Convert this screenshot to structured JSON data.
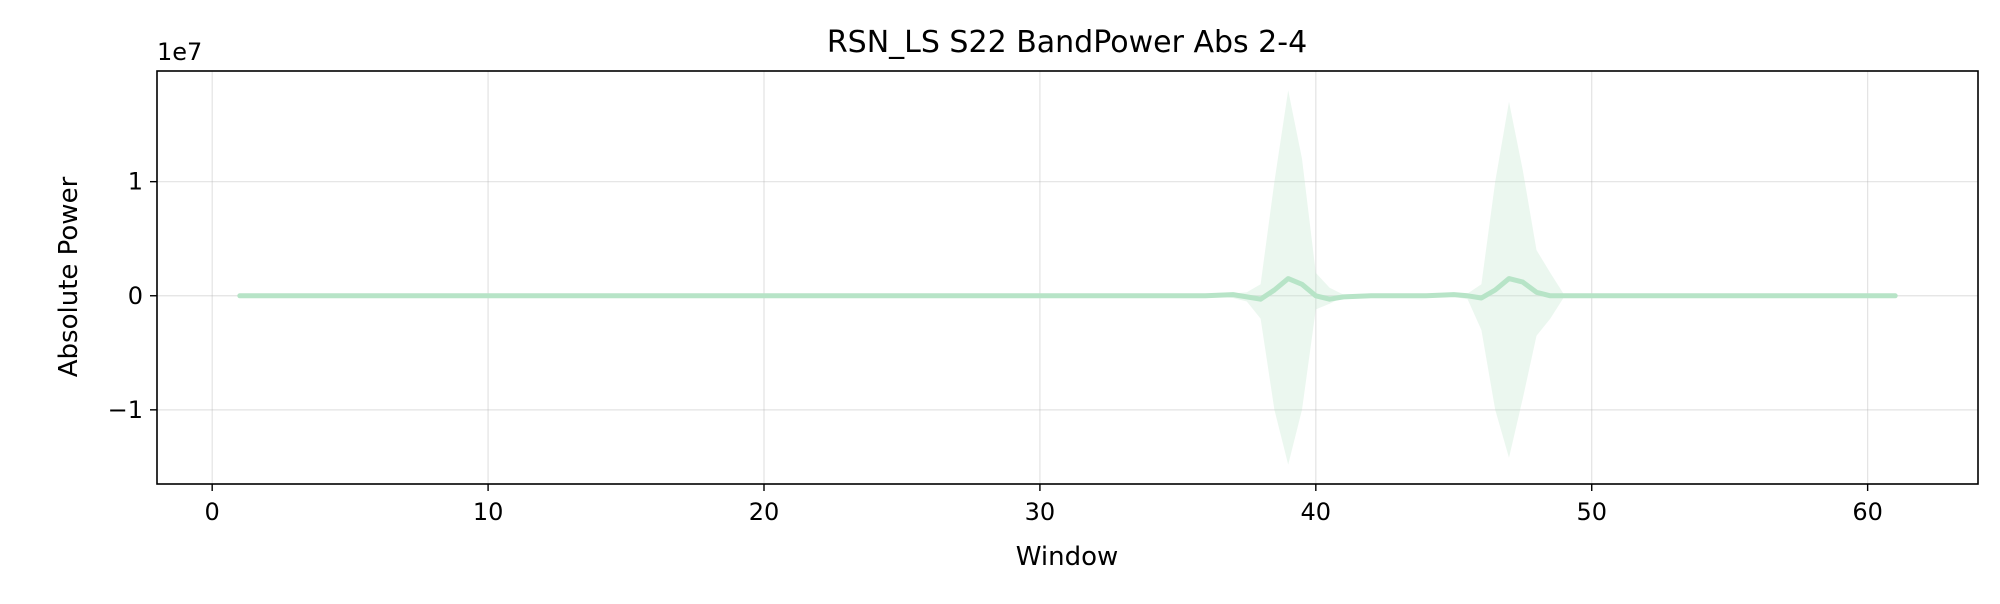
{
  "chart_data": {
    "type": "line",
    "title": "RSN_LS S22 BandPower Abs 2-4",
    "xlabel": "Window",
    "ylabel": "Absolute Power",
    "y_offset_label": "1e7",
    "xlim": [
      -2,
      64
    ],
    "ylim": [
      -1.65,
      1.97
    ],
    "x_ticks": [
      0,
      10,
      20,
      30,
      40,
      50,
      60
    ],
    "x_tick_labels": [
      "0",
      "10",
      "20",
      "30",
      "40",
      "50",
      "60"
    ],
    "y_ticks": [
      -1,
      0,
      1
    ],
    "y_tick_labels": [
      "−1",
      "0",
      "1"
    ],
    "grid": true,
    "colors": {
      "line": "#b7e4c7",
      "band": "#b7e4c7"
    },
    "series": [
      {
        "x": [
          1,
          5,
          10,
          15,
          20,
          25,
          30,
          35,
          36,
          37,
          37.5,
          38,
          38.5,
          39,
          39.5,
          40,
          40.5,
          41,
          42,
          43,
          44,
          45,
          45.5,
          46,
          46.5,
          47,
          47.5,
          48,
          48.5,
          49,
          50,
          55,
          61
        ],
        "mean": [
          0,
          0,
          0,
          0,
          0,
          0,
          0,
          0,
          0,
          0.01,
          -0.01,
          -0.03,
          0.05,
          0.15,
          0.1,
          0.0,
          -0.03,
          -0.01,
          0,
          0,
          0,
          0.01,
          0,
          -0.02,
          0.05,
          0.15,
          0.12,
          0.03,
          0.0,
          0,
          0,
          0,
          0
        ],
        "upper": [
          0,
          0,
          0,
          0,
          0,
          0,
          0,
          0,
          0,
          0.02,
          0.03,
          0.1,
          1.0,
          1.8,
          1.2,
          0.2,
          0.07,
          0.01,
          0,
          0,
          0,
          0.01,
          0.02,
          0.1,
          1.0,
          1.7,
          1.1,
          0.4,
          0.2,
          0.01,
          0,
          0,
          0
        ],
        "lower": [
          0,
          0,
          0,
          0,
          0,
          0,
          0,
          0,
          0,
          -0.02,
          -0.05,
          -0.2,
          -1.0,
          -1.48,
          -1.0,
          -0.12,
          -0.07,
          -0.01,
          0,
          0,
          0,
          -0.01,
          -0.03,
          -0.3,
          -1.0,
          -1.42,
          -0.9,
          -0.35,
          -0.2,
          -0.01,
          0,
          0,
          0
        ]
      }
    ]
  }
}
